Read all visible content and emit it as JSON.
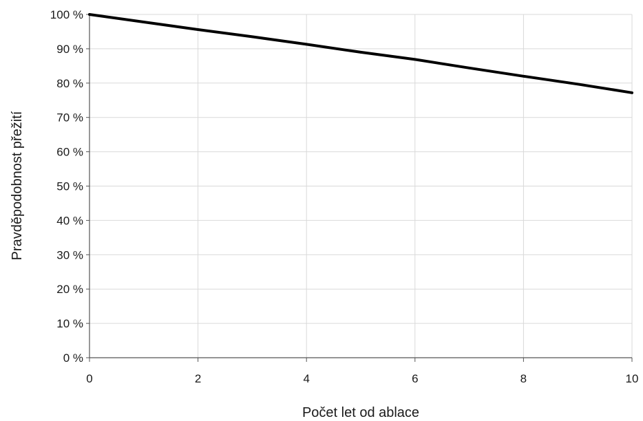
{
  "chart_data": {
    "type": "line",
    "xlabel": "Počet let od ablace",
    "ylabel": "Pravděpodobnost přežití",
    "xlim": [
      0,
      10
    ],
    "ylim": [
      0,
      100
    ],
    "x_ticks": [
      "0",
      "2",
      "4",
      "6",
      "8",
      "10"
    ],
    "y_ticks": [
      "0 %",
      "10 %",
      "20 %",
      "30 %",
      "40 %",
      "50 %",
      "60 %",
      "70 %",
      "80 %",
      "90 %",
      "100 %"
    ],
    "grid": true,
    "legend": "none",
    "series": [
      {
        "color": "#000000",
        "x": [
          0,
          1,
          2,
          3,
          4,
          5,
          6,
          7,
          8,
          9,
          10
        ],
        "y": [
          100,
          97.8,
          95.6,
          93.5,
          91.3,
          89,
          86.9,
          84.4,
          82,
          79.7,
          77.2
        ]
      }
    ]
  }
}
